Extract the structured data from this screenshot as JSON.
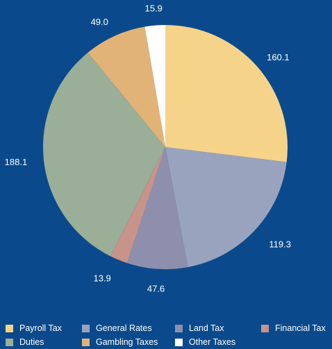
{
  "chart_data": {
    "type": "pie",
    "title": "",
    "slices": [
      {
        "label": "Payroll Tax",
        "value": 160.1,
        "display": "160.1",
        "color": "#f5d48a"
      },
      {
        "label": "General Rates",
        "value": 119.3,
        "display": "119.3",
        "color": "#9aa3bd"
      },
      {
        "label": "Land Tax",
        "value": 47.6,
        "display": "47.6",
        "color": "#8d8fad"
      },
      {
        "label": "Financial Tax",
        "value": 13.9,
        "display": "13.9",
        "color": "#c8938a"
      },
      {
        "label": "Duties",
        "value": 188.1,
        "display": "188.1",
        "color": "#9aae98"
      },
      {
        "label": "Gambling Taxes",
        "value": 49.0,
        "display": "49.0",
        "color": "#e1b376"
      },
      {
        "label": "Other Taxes",
        "value": 15.9,
        "display": "15.9",
        "color": "#ffffff"
      }
    ],
    "legend_position": "bottom"
  }
}
